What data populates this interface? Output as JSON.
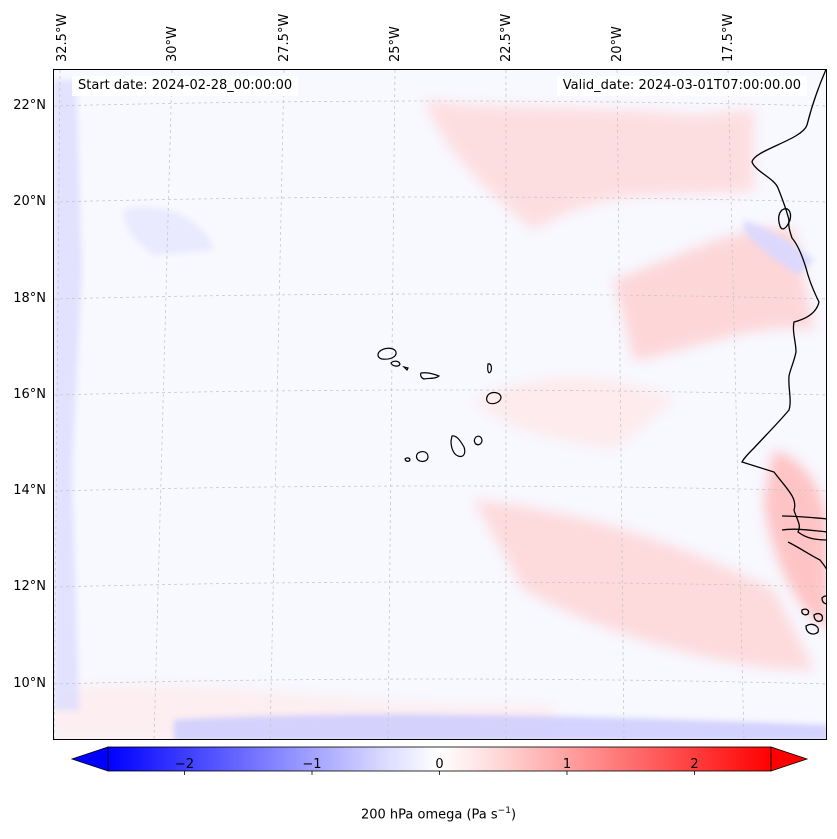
{
  "map": {
    "start_date": "Start date: 2024-02-28_00:00:00",
    "valid_date": "Valid_date: 2024-03-01T07:00:00.00",
    "lon_labels": [
      "32.5°W",
      "30°W",
      "27.5°W",
      "25°W",
      "22.5°W",
      "20°W",
      "17.5°W"
    ],
    "lat_labels": [
      "22°N",
      "20°N",
      "18°N",
      "16°N",
      "14°N",
      "12°N",
      "10°N"
    ],
    "colors": {
      "positive": "#ff0000",
      "negative": "#0000ff",
      "neutral": "#ffffff",
      "coast": "#000000",
      "grid": "#bbbbbb"
    }
  },
  "colorbar": {
    "title": "200 hPa omega (Pa s",
    "title_superscript": "−1",
    "title_suffix": ")",
    "range": [
      -2.6,
      2.6
    ],
    "ticks": [
      "−2",
      "−1",
      "0",
      "1",
      "2"
    ],
    "tick_values": [
      -2,
      -1,
      0,
      1,
      2
    ]
  }
}
